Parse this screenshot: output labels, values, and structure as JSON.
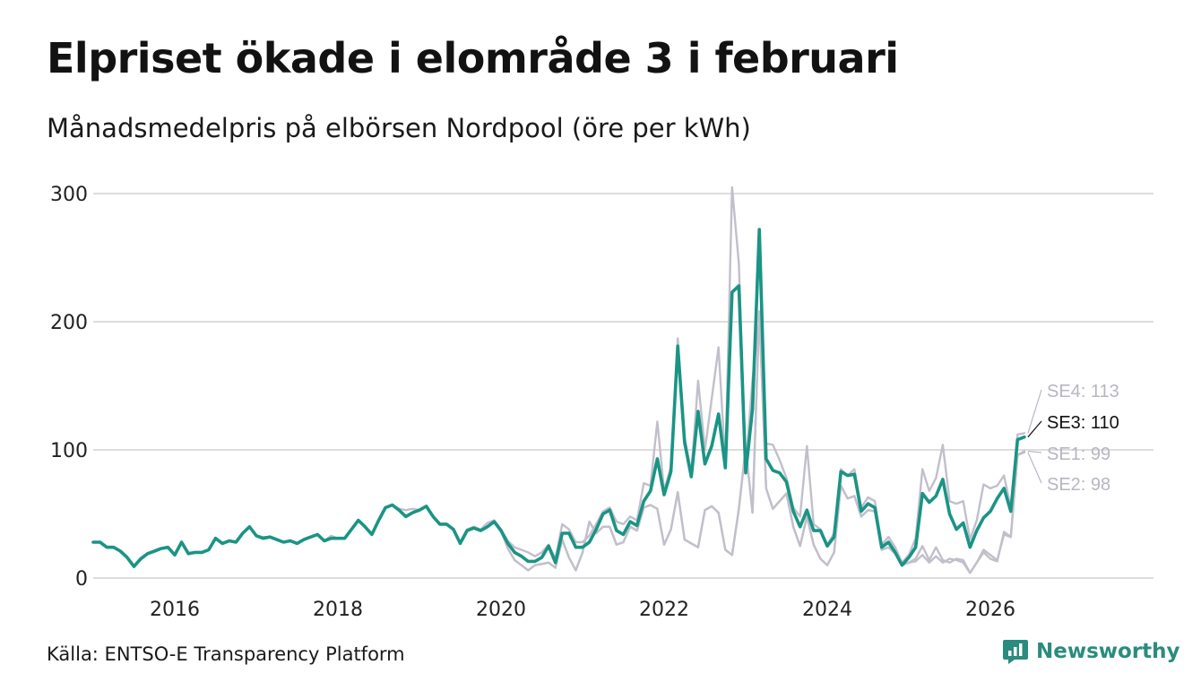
{
  "title": "Elpriset ökade i elområde 3 i februari",
  "subtitle": "Månadsmedelpris på elbörsen Nordpool (öre per kWh)",
  "source": "Källa: ENTSO-E Transparency Platform",
  "brand": {
    "name": "Newsworthy",
    "color": "#2a8c7e"
  },
  "colors": {
    "highlight": "#1a9485",
    "context": "#c2bfcb",
    "grid": "#dddddd",
    "label_context": "#b8b5c2",
    "label_highlight": "#111111"
  },
  "chart_data": {
    "type": "line",
    "title": "Elpriset ökade i elområde 3 i februari",
    "ylabel": "öre per kWh",
    "xlim": [
      2015.0,
      2028.0
    ],
    "ylim": [
      0,
      300
    ],
    "yticks": [
      0,
      100,
      200,
      300
    ],
    "xticks": [
      2016,
      2018,
      2020,
      2022,
      2024,
      2026
    ],
    "ytick_labels": [
      "0",
      "100",
      "200",
      "300"
    ],
    "xtick_labels": [
      "2016",
      "2018",
      "2020",
      "2022",
      "2024",
      "2026"
    ],
    "x_start": "2015-01",
    "x_step": "month",
    "series": [
      {
        "name": "SE3",
        "highlight": true,
        "label": "SE3: 110",
        "values": [
          28,
          28,
          24,
          24,
          21,
          16,
          9,
          15,
          19,
          21,
          23,
          24,
          18,
          28,
          19,
          20,
          20,
          22,
          31,
          27,
          29,
          28,
          35,
          40,
          33,
          31,
          32,
          30,
          28,
          29,
          27,
          30,
          32,
          34,
          29,
          31,
          31,
          31,
          38,
          45,
          40,
          34,
          45,
          55,
          57,
          53,
          48,
          51,
          53,
          56,
          48,
          42,
          42,
          38,
          27,
          37,
          39,
          37,
          40,
          44,
          37,
          27,
          20,
          17,
          13,
          13,
          16,
          25,
          12,
          35,
          35,
          24,
          24,
          28,
          38,
          50,
          53,
          37,
          34,
          44,
          41,
          60,
          68,
          93,
          65,
          83,
          181,
          106,
          79,
          130,
          89,
          103,
          128,
          86,
          223,
          228,
          82,
          132,
          272,
          93,
          84,
          82,
          75,
          52,
          40,
          53,
          37,
          37,
          25,
          32,
          83,
          80,
          81,
          52,
          58,
          55,
          24,
          28,
          20,
          10,
          16,
          24,
          66,
          59,
          64,
          77,
          50,
          38,
          43,
          24,
          37,
          47,
          52,
          62,
          70,
          52,
          108,
          110
        ],
        "color": "#1a9485"
      },
      {
        "name": "SE4",
        "highlight": false,
        "label": "SE4: 113",
        "values": [
          28,
          28,
          24,
          24,
          21,
          16,
          9,
          15,
          19,
          21,
          23,
          24,
          18,
          28,
          19,
          20,
          20,
          22,
          31,
          27,
          29,
          28,
          35,
          40,
          33,
          32,
          32,
          30,
          28,
          29,
          27,
          30,
          32,
          34,
          29,
          33,
          31,
          31,
          38,
          45,
          40,
          34,
          45,
          55,
          57,
          54,
          53,
          54,
          53,
          56,
          48,
          42,
          42,
          38,
          28,
          38,
          40,
          38,
          43,
          45,
          38,
          29,
          24,
          22,
          20,
          17,
          20,
          26,
          15,
          42,
          38,
          28,
          28,
          33,
          42,
          52,
          55,
          44,
          42,
          48,
          45,
          74,
          72,
          122,
          68,
          87,
          187,
          110,
          82,
          154,
          100,
          140,
          180,
          88,
          305,
          245,
          86,
          155,
          202,
          105,
          104,
          92,
          78,
          55,
          48,
          103,
          42,
          38,
          26,
          35,
          85,
          80,
          85,
          55,
          63,
          60,
          26,
          32,
          24,
          12,
          18,
          31,
          85,
          68,
          78,
          104,
          60,
          58,
          60,
          30,
          45,
          73,
          70,
          72,
          80,
          55,
          112,
          113
        ],
        "color": "#c2bfcb"
      },
      {
        "name": "SE1",
        "highlight": false,
        "label": "SE1: 99",
        "values": [
          28,
          28,
          24,
          24,
          21,
          16,
          9,
          15,
          19,
          21,
          23,
          24,
          18,
          28,
          19,
          20,
          20,
          22,
          31,
          27,
          29,
          28,
          35,
          40,
          33,
          31,
          32,
          30,
          28,
          29,
          27,
          30,
          32,
          34,
          29,
          31,
          31,
          31,
          38,
          45,
          40,
          34,
          45,
          55,
          57,
          53,
          48,
          51,
          53,
          56,
          48,
          42,
          42,
          38,
          27,
          37,
          39,
          37,
          40,
          44,
          37,
          23,
          14,
          10,
          6,
          10,
          11,
          12,
          8,
          30,
          16,
          6,
          20,
          44,
          35,
          40,
          40,
          26,
          28,
          40,
          37,
          55,
          57,
          54,
          26,
          38,
          67,
          30,
          27,
          24,
          53,
          56,
          51,
          22,
          18,
          54,
          102,
          51,
          208,
          70,
          54,
          60,
          66,
          40,
          25,
          48,
          26,
          15,
          10,
          20,
          72,
          62,
          64,
          48,
          53,
          52,
          22,
          24,
          19,
          10,
          12,
          13,
          18,
          12,
          17,
          12,
          15,
          14,
          12,
          4,
          12,
          20,
          15,
          13,
          36,
          32,
          96,
          99
        ],
        "color": "#c2bfcb"
      },
      {
        "name": "SE2",
        "highlight": false,
        "label": "SE2: 98",
        "values": [
          28,
          28,
          24,
          24,
          21,
          16,
          9,
          15,
          19,
          21,
          23,
          24,
          18,
          28,
          19,
          20,
          20,
          22,
          31,
          27,
          29,
          28,
          35,
          40,
          33,
          31,
          32,
          30,
          28,
          29,
          27,
          30,
          32,
          34,
          29,
          31,
          31,
          31,
          38,
          45,
          40,
          34,
          45,
          55,
          57,
          53,
          48,
          51,
          53,
          56,
          48,
          42,
          42,
          38,
          27,
          37,
          39,
          37,
          40,
          44,
          37,
          23,
          14,
          10,
          6,
          10,
          11,
          12,
          8,
          30,
          16,
          6,
          20,
          44,
          35,
          40,
          40,
          26,
          28,
          40,
          37,
          55,
          57,
          54,
          26,
          38,
          67,
          30,
          27,
          24,
          53,
          56,
          51,
          22,
          18,
          54,
          102,
          51,
          208,
          70,
          54,
          60,
          66,
          40,
          25,
          48,
          26,
          15,
          10,
          20,
          72,
          62,
          64,
          48,
          53,
          52,
          22,
          24,
          19,
          10,
          12,
          15,
          25,
          14,
          24,
          14,
          12,
          15,
          14,
          4,
          12,
          22,
          18,
          14,
          34,
          32,
          96,
          98
        ],
        "color": "#c2bfcb"
      }
    ]
  }
}
